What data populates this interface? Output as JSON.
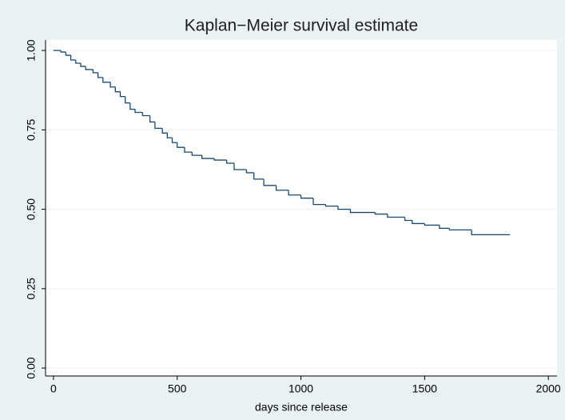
{
  "chart_data": {
    "type": "step",
    "title": "Kaplan−Meier survival estimate",
    "x_label": "days since release",
    "x": [
      0,
      30,
      50,
      70,
      90,
      110,
      130,
      160,
      180,
      200,
      230,
      250,
      270,
      290,
      310,
      330,
      360,
      390,
      410,
      440,
      460,
      480,
      500,
      530,
      560,
      600,
      650,
      700,
      730,
      780,
      810,
      850,
      900,
      950,
      1000,
      1050,
      1100,
      1150,
      1200,
      1300,
      1350,
      1420,
      1450,
      1500,
      1560,
      1600,
      1690,
      1845
    ],
    "values": [
      1.0,
      0.995,
      0.985,
      0.97,
      0.96,
      0.95,
      0.94,
      0.93,
      0.915,
      0.9,
      0.885,
      0.87,
      0.855,
      0.835,
      0.815,
      0.805,
      0.795,
      0.775,
      0.755,
      0.74,
      0.725,
      0.71,
      0.695,
      0.68,
      0.67,
      0.66,
      0.655,
      0.645,
      0.625,
      0.615,
      0.595,
      0.575,
      0.56,
      0.545,
      0.535,
      0.515,
      0.51,
      0.5,
      0.49,
      0.485,
      0.475,
      0.465,
      0.455,
      0.45,
      0.44,
      0.435,
      0.42,
      0.42
    ],
    "color": "#1a476f",
    "xlim": [
      -32,
      2035
    ],
    "xticks": [
      0,
      500,
      1000,
      1500,
      2000
    ],
    "ylim": [
      -0.025,
      1.033
    ],
    "yticks": [
      {
        "value": 0,
        "label": "0.00"
      },
      {
        "value": 0.25,
        "label": "0.25"
      },
      {
        "value": 0.5,
        "label": "0.50"
      },
      {
        "value": 0.75,
        "label": "0.75"
      },
      {
        "value": 1,
        "label": "1.00"
      }
    ],
    "grid": true
  }
}
